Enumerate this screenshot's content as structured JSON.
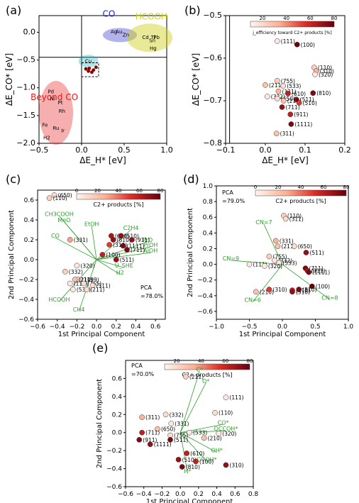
{
  "colors": {
    "low": "#fff5f0",
    "mid": "#f4735a",
    "high": "#67000d",
    "green": "#2ca02c",
    "co_blue": "#2424c8",
    "hcooh_yellow": "#cfcf1a",
    "cyan": "#20b8c0",
    "red_region": "#e81818"
  },
  "chart_data": [
    {
      "panel": "(a)",
      "type": "scatter",
      "xlabel": "ΔE_H* [eV]",
      "ylabel": "ΔE_CO* [eV]",
      "xlim": [
        -0.5,
        1.0
      ],
      "ylim": [
        -2.0,
        0.3
      ],
      "xticks": [
        "−0.5",
        "0.0",
        "0.5",
        "1.0"
      ],
      "yticks": [
        "0.0",
        "−0.5",
        "−1.0",
        "−1.5",
        "−2.0"
      ],
      "regions": [
        {
          "name": "CO",
          "color": "#2424c8",
          "x": 0.32,
          "y": 0.0
        },
        {
          "name": "HCOOH",
          "color": "#cfcf1a",
          "x": 0.82,
          "y": -0.05
        },
        {
          "name": "Beyond CO",
          "color": "#e81818",
          "x": -0.32,
          "y": -1.5
        }
      ],
      "labels": [
        "Ag",
        "Au",
        "Zn",
        "Cd",
        "Tl",
        "Sn",
        "Pb",
        "Hg",
        "Cu",
        "Pd",
        "Ni",
        "Pt",
        "Rh",
        "Fe",
        "Ru",
        "Ir",
        "H2"
      ],
      "labels_x": [
        0.38,
        0.44,
        0.52,
        0.75,
        0.84,
        0.83,
        0.88,
        0.84,
        0.08,
        -0.36,
        -0.34,
        -0.25,
        -0.23,
        -0.43,
        -0.3,
        -0.22,
        -0.41
      ],
      "labels_y": [
        -0.02,
        -0.02,
        -0.08,
        -0.12,
        -0.12,
        -0.18,
        -0.12,
        -0.32,
        -0.55,
        -1.1,
        -1.23,
        -1.3,
        -1.45,
        -1.7,
        -1.76,
        -1.8,
        -1.93
      ],
      "cluster_points": {
        "x": [
          0.05,
          0.08,
          0.09,
          0.12,
          0.14,
          0.17
        ],
        "y": [
          -0.66,
          -0.7,
          -0.65,
          -0.72,
          -0.68,
          -0.63
        ]
      }
    },
    {
      "panel": "(b)",
      "type": "scatter",
      "xlabel": "ΔE_H* [eV]",
      "ylabel": "ΔE_CO* [eV]",
      "xlim": [
        -0.1,
        0.2
      ],
      "ylim": [
        -0.8,
        -0.5
      ],
      "xticks": [
        "−0.1",
        "0.0",
        "0.1",
        "0.2"
      ],
      "yticks": [
        "−0.5",
        "−0.6",
        "−0.7",
        "−0.8"
      ],
      "colorbar_label": "j_efficiency toward C2+ products [%]",
      "colorbar_ticks": [
        "20",
        "40",
        "60",
        "80"
      ],
      "labels": [
        "(111)",
        "(100)",
        "(110)",
        "(310)",
        "(320)",
        "(755)",
        "(211)",
        "(533)",
        "(331)",
        "(332)",
        "(610)",
        "(650)",
        "(511)",
        "(210)",
        "(510)",
        "(711)",
        "(810)",
        "(911)",
        "(1111)",
        "(311)"
      ],
      "x": [
        0.03,
        0.08,
        0.123,
        0.128,
        0.125,
        0.03,
        0.0,
        0.045,
        0.033,
        0.005,
        0.057,
        0.03,
        0.078,
        0.046,
        0.085,
        0.042,
        0.12,
        0.063,
        0.065,
        0.028
      ],
      "y": [
        -0.56,
        -0.568,
        -0.622,
        -0.63,
        -0.638,
        -0.653,
        -0.663,
        -0.665,
        -0.678,
        -0.69,
        -0.683,
        -0.695,
        -0.697,
        -0.7,
        -0.705,
        -0.715,
        -0.682,
        -0.732,
        -0.755,
        -0.777
      ],
      "values": [
        5,
        80,
        15,
        25,
        5,
        15,
        20,
        10,
        25,
        5,
        60,
        10,
        70,
        20,
        50,
        70,
        75,
        60,
        75,
        20
      ]
    },
    {
      "panel": "(c)",
      "type": "scatter",
      "xlabel": "1st Principal Component",
      "ylabel": "2nd Principal Component",
      "xlim": [
        -0.6,
        0.7
      ],
      "ylim": [
        -0.6,
        0.7
      ],
      "xticks": [
        "−0.6",
        "−0.4",
        "−0.2",
        "0.0",
        "0.2",
        "0.4",
        "0.6"
      ],
      "yticks": [
        "0.6",
        "0.4",
        "0.2",
        "0.0",
        "−0.2",
        "−0.4",
        "−0.6"
      ],
      "colorbar_label": "C2+ products [%]",
      "colorbar_ticks": [
        "0",
        "20",
        "40",
        "60",
        "80"
      ],
      "pca_text": [
        "PCA",
        "=78.0%"
      ],
      "loadings": [
        "CH3COOH",
        "MeO",
        "EtOH",
        "C2H4",
        "CO",
        "PrD",
        "PrOH",
        "AlOH",
        "U_SHE",
        "H2",
        "HCOOH",
        "CH4"
      ],
      "loadings_x": [
        -0.38,
        -0.33,
        -0.05,
        0.35,
        -0.42,
        0.52,
        0.55,
        0.55,
        0.28,
        0.24,
        -0.38,
        -0.18
      ],
      "loadings_y": [
        0.44,
        0.38,
        0.34,
        0.3,
        0.22,
        0.18,
        0.13,
        0.07,
        -0.08,
        -0.15,
        -0.42,
        -0.52
      ],
      "labels": [
        "(650)",
        "(110)",
        "(331)",
        "(610)",
        "(510)",
        "(810)",
        "(911)",
        "(310)",
        "(1111)",
        "(711)",
        "(100)",
        "(511)",
        "(320)",
        "(332)",
        "(1199)",
        "(210)",
        "(111)",
        "(755)",
        "(311)",
        "(533)",
        "(211)"
      ],
      "x": [
        -0.43,
        -0.48,
        -0.27,
        0.15,
        0.25,
        0.17,
        0.36,
        0.13,
        0.27,
        0.31,
        0.06,
        0.2,
        -0.2,
        -0.32,
        -0.19,
        -0.22,
        -0.27,
        -0.13,
        -0.04,
        -0.24,
        -0.1
      ],
      "y": [
        0.65,
        0.62,
        0.2,
        0.24,
        0.24,
        0.2,
        0.2,
        0.15,
        0.14,
        0.1,
        0.05,
        0.0,
        -0.06,
        -0.12,
        -0.2,
        -0.2,
        -0.24,
        -0.24,
        -0.26,
        -0.3,
        -0.3
      ],
      "values": [
        10,
        15,
        30,
        65,
        70,
        70,
        70,
        50,
        75,
        75,
        60,
        70,
        5,
        15,
        10,
        20,
        5,
        10,
        10,
        5,
        10
      ]
    },
    {
      "panel": "(d)",
      "type": "scatter",
      "xlabel": "1st Principal Component",
      "ylabel": "2nd Principal Component",
      "xlim": [
        -1.0,
        1.0
      ],
      "ylim": [
        -0.7,
        1.0
      ],
      "xticks": [
        "−1.0",
        "−0.5",
        "0.0",
        "0.5",
        "1.0"
      ],
      "yticks": [
        "1.0",
        "0.8",
        "0.6",
        "0.4",
        "0.2",
        "0.0",
        "−0.2",
        "−0.4",
        "−0.6"
      ],
      "colorbar_label": "C2+ products [%]",
      "colorbar_ticks": [
        "0",
        "20",
        "40",
        "60",
        "80"
      ],
      "pca_text": [
        "PCA",
        "=79.0%"
      ],
      "loadings": [
        "CN=7",
        "CN=9",
        "CN=6",
        "CN=8"
      ],
      "loadings_x": [
        -0.28,
        -0.78,
        -0.45,
        0.72
      ],
      "loadings_y": [
        0.51,
        0.05,
        -0.48,
        -0.45
      ],
      "labels": [
        "(110)",
        "(311)",
        "(331)",
        "(211)",
        "(650)",
        "(755)",
        "(332)",
        "(533)",
        "(511)",
        "(111)",
        "(320)",
        "(711)",
        "(911)",
        "(1111)",
        "(210)",
        "(310)",
        "(610)",
        "(510)",
        "(810)",
        "(100)"
      ],
      "x": [
        0.02,
        0.05,
        -0.1,
        -0.07,
        0.18,
        -0.2,
        -0.12,
        -0.05,
        0.36,
        -0.5,
        -0.27,
        0.35,
        0.38,
        0.4,
        -0.4,
        -0.2,
        0.15,
        0.15,
        0.25,
        0.45
      ],
      "y": [
        0.62,
        0.58,
        0.3,
        0.23,
        0.23,
        0.1,
        0.05,
        0.02,
        0.15,
        0.0,
        -0.02,
        -0.05,
        -0.08,
        -0.1,
        -0.35,
        -0.32,
        -0.33,
        -0.35,
        -0.32,
        -0.28
      ],
      "values": [
        15,
        10,
        25,
        20,
        10,
        15,
        5,
        5,
        70,
        5,
        5,
        75,
        65,
        75,
        20,
        50,
        60,
        70,
        75,
        80
      ]
    },
    {
      "panel": "(e)",
      "type": "scatter",
      "xlabel": "1st Principal Component",
      "ylabel": "2nd Principal Component",
      "xlim": [
        -0.6,
        0.8
      ],
      "ylim": [
        -0.6,
        0.8
      ],
      "xticks": [
        "−0.6",
        "−0.4",
        "−0.2",
        "0.0",
        "0.2",
        "0.4",
        "0.6",
        "0.8"
      ],
      "yticks": [
        "0.6",
        "0.4",
        "0.2",
        "0.0",
        "−0.2",
        "−0.4",
        "−0.6"
      ],
      "colorbar_label": "C2+ products [%]",
      "colorbar_ticks": [
        "20",
        "40",
        "60",
        "80"
      ],
      "pca_text": [
        "PCA",
        "=70.0%"
      ],
      "loadings": [
        "C*",
        "O*",
        "CO*",
        "OCCOH*",
        "OH*",
        "COOH*",
        "H*"
      ],
      "loadings_x": [
        0.21,
        0.28,
        0.47,
        0.5,
        0.4,
        0.29,
        0.08
      ],
      "loadings_y": [
        0.68,
        0.55,
        0.09,
        0.02,
        -0.22,
        -0.32,
        -0.45
      ],
      "labels": [
        "(211)",
        "(111)",
        "(110)",
        "(332)",
        "(311)",
        "(331)",
        "(650)",
        "(711)",
        "(533)",
        "(320)",
        "(755)",
        "(210)",
        "(911)",
        "(511)",
        "(1111)",
        "(610)",
        "(510)",
        "(100)",
        "(810)",
        "(310)"
      ],
      "x": [
        0.06,
        0.5,
        0.38,
        -0.16,
        -0.42,
        -0.1,
        -0.25,
        -0.42,
        0.1,
        0.42,
        -0.11,
        0.26,
        -0.45,
        -0.11,
        -0.33,
        0.07,
        -0.02,
        0.17,
        0.02,
        0.5
      ],
      "y": [
        0.62,
        0.39,
        0.22,
        0.2,
        0.17,
        0.1,
        0.04,
        0.0,
        0.0,
        -0.01,
        -0.03,
        -0.06,
        -0.08,
        -0.08,
        -0.13,
        -0.23,
        -0.3,
        -0.32,
        -0.38,
        -0.36
      ],
      "values": [
        15,
        5,
        10,
        10,
        25,
        5,
        20,
        60,
        5,
        5,
        10,
        20,
        75,
        75,
        70,
        60,
        70,
        60,
        75,
        70
      ]
    }
  ]
}
